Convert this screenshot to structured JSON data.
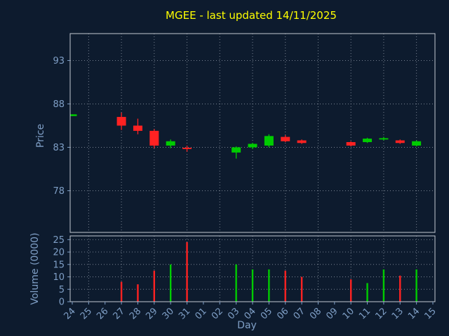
{
  "chart_data": {
    "type": "candlestick",
    "title": "MGEE - last updated 14/11/2025",
    "xlabel": "Day",
    "price_ylabel": "Price",
    "volume_ylabel": "Volume (0000)",
    "x_categories": [
      "24",
      "25",
      "26",
      "27",
      "28",
      "29",
      "30",
      "31",
      "01",
      "02",
      "03",
      "04",
      "05",
      "06",
      "07",
      "08",
      "09",
      "10",
      "11",
      "12",
      "13",
      "14",
      "15"
    ],
    "price_ticks": [
      78,
      83,
      88,
      93
    ],
    "price_range": [
      73.2,
      96.1
    ],
    "volume_ticks": [
      0,
      5,
      10,
      15,
      20,
      25
    ],
    "volume_range": [
      0,
      26.5
    ],
    "grid": "dotted, vertical line every other day, horizontal at each tick",
    "legend": "none",
    "candles": [
      {
        "day": "24",
        "open": 86.6,
        "close": 86.8,
        "high": 86.8,
        "low": 86.6,
        "volume": 0
      },
      {
        "day": "27",
        "open": 86.5,
        "close": 85.5,
        "high": 87.0,
        "low": 85.0,
        "volume": 8
      },
      {
        "day": "28",
        "open": 85.5,
        "close": 84.9,
        "high": 86.3,
        "low": 84.5,
        "volume": 7
      },
      {
        "day": "29",
        "open": 84.9,
        "close": 83.2,
        "high": 85.1,
        "low": 82.9,
        "volume": 12.5
      },
      {
        "day": "30",
        "open": 83.2,
        "close": 83.7,
        "high": 83.9,
        "low": 82.9,
        "volume": 15
      },
      {
        "day": "31",
        "open": 82.95,
        "close": 82.8,
        "high": 83.2,
        "low": 82.5,
        "volume": 24
      },
      {
        "day": "03",
        "open": 82.4,
        "close": 83.0,
        "high": 83.1,
        "low": 81.7,
        "volume": 15
      },
      {
        "day": "04",
        "open": 83.0,
        "close": 83.4,
        "high": 83.5,
        "low": 82.8,
        "volume": 13
      },
      {
        "day": "05",
        "open": 83.2,
        "close": 84.3,
        "high": 84.5,
        "low": 83.0,
        "volume": 13
      },
      {
        "day": "06",
        "open": 84.2,
        "close": 83.7,
        "high": 84.4,
        "low": 83.6,
        "volume": 12.5
      },
      {
        "day": "07",
        "open": 83.8,
        "close": 83.5,
        "high": 83.9,
        "low": 83.4,
        "volume": 10
      },
      {
        "day": "10",
        "open": 83.6,
        "close": 83.2,
        "high": 83.7,
        "low": 83.1,
        "volume": 9
      },
      {
        "day": "11",
        "open": 83.6,
        "close": 84.0,
        "high": 84.1,
        "low": 83.5,
        "volume": 7.5
      },
      {
        "day": "12",
        "open": 83.9,
        "close": 84.05,
        "high": 84.2,
        "low": 83.8,
        "volume": 13
      },
      {
        "day": "13",
        "open": 83.8,
        "close": 83.5,
        "high": 83.9,
        "low": 83.4,
        "volume": 10.5
      },
      {
        "day": "14",
        "open": 83.2,
        "close": 83.7,
        "high": 83.8,
        "low": 83.1,
        "volume": 13
      }
    ],
    "colors": {
      "background": "#0d1b2e",
      "up": "#00cc00",
      "down": "#ff2222",
      "title": "#ffff00",
      "label": "#7f9fc6",
      "grid": "#8b95a3",
      "spine": "#c3c9d2"
    }
  }
}
